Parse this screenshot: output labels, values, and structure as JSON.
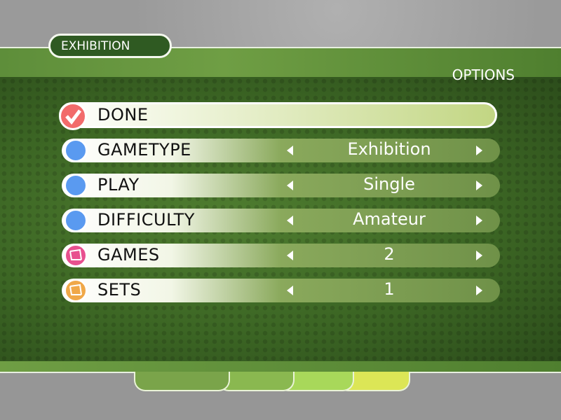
{
  "header": {
    "tab_label": "EXHIBITION",
    "section_title": "OPTIONS"
  },
  "menu": {
    "done": {
      "label": "DONE",
      "icon": "check-icon",
      "color": "#f26b6b"
    },
    "rows": [
      {
        "label": "GAMETYPE",
        "value": "Exhibition",
        "icon": "dot-icon",
        "color": "#5a9af0"
      },
      {
        "label": "PLAY",
        "value": "Single",
        "icon": "dot-icon",
        "color": "#5a9af0"
      },
      {
        "label": "DIFFICULTY",
        "value": "Amateur",
        "icon": "dot-icon",
        "color": "#5a9af0"
      },
      {
        "label": "GAMES",
        "value": "2",
        "icon": "net-icon",
        "color": "#e8508f"
      },
      {
        "label": "SETS",
        "value": "1",
        "icon": "net-icon",
        "color": "#f0a848"
      }
    ]
  },
  "footer": {
    "segment_colors": [
      "#7aa44a",
      "#8ab850",
      "#a8d85a",
      "#dce656"
    ]
  }
}
